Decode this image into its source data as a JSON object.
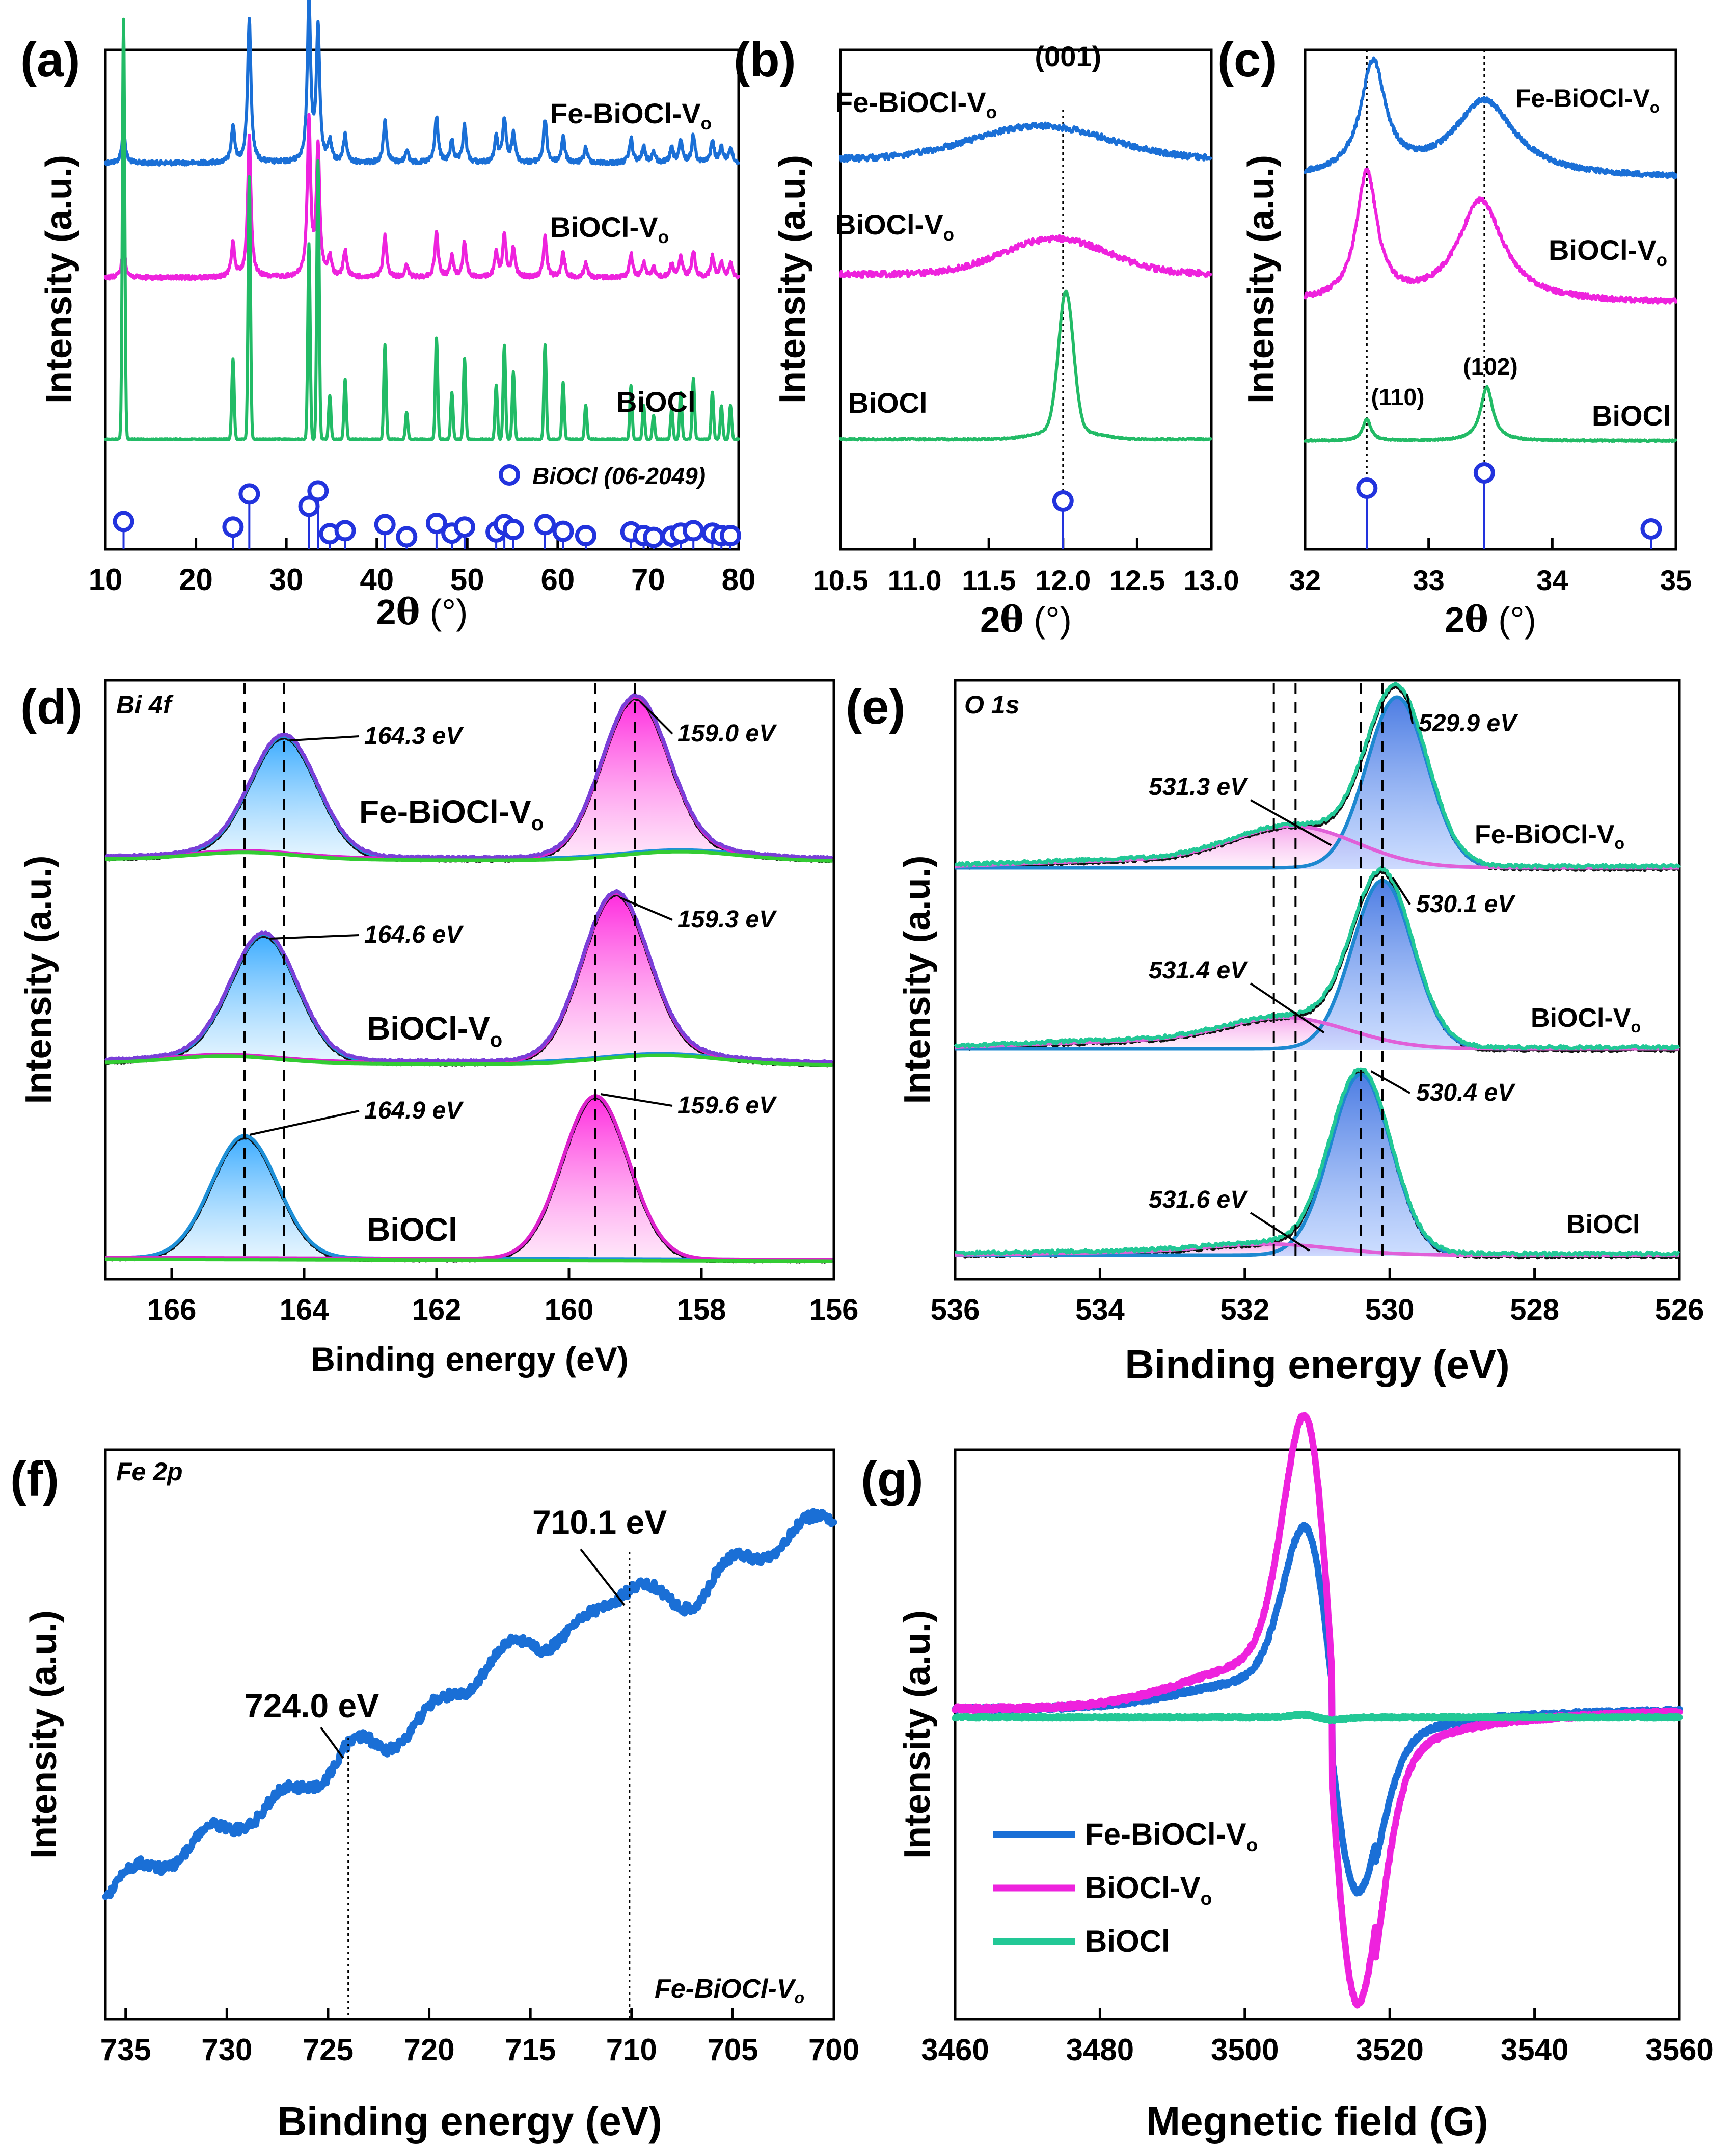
{
  "chart_data": [
    {
      "panel": "(a)",
      "type": "line",
      "xlabel": "2θ (°)",
      "ylabel": "Intensity (a.u.)",
      "xlim": [
        10,
        80
      ],
      "xticks": [
        10,
        20,
        30,
        40,
        50,
        60,
        70,
        80
      ],
      "series": [
        {
          "name": "Fe-BiOCl-Vo",
          "label": "Fe-BiOCl-V",
          "sub": "o",
          "color": "#1a6fd6"
        },
        {
          "name": "BiOCl-Vo",
          "label": "BiOCl-V",
          "sub": "o",
          "color": "#ee22dd"
        },
        {
          "name": "BiOCl",
          "label": "BiOCl",
          "sub": "",
          "color": "#22bb66"
        }
      ],
      "peaks": [
        {
          "x": 12.0,
          "h": 0.33
        },
        {
          "x": 24.1,
          "h": 0.24
        },
        {
          "x": 25.9,
          "h": 0.78
        },
        {
          "x": 32.5,
          "h": 0.58
        },
        {
          "x": 33.5,
          "h": 0.83
        },
        {
          "x": 34.8,
          "h": 0.13
        },
        {
          "x": 36.5,
          "h": 0.18
        },
        {
          "x": 40.9,
          "h": 0.28
        },
        {
          "x": 43.3,
          "h": 0.08
        },
        {
          "x": 46.6,
          "h": 0.3
        },
        {
          "x": 48.3,
          "h": 0.14
        },
        {
          "x": 49.7,
          "h": 0.24
        },
        {
          "x": 53.2,
          "h": 0.16
        },
        {
          "x": 54.1,
          "h": 0.28
        },
        {
          "x": 55.1,
          "h": 0.2
        },
        {
          "x": 58.6,
          "h": 0.28
        },
        {
          "x": 60.6,
          "h": 0.17
        },
        {
          "x": 63.1,
          "h": 0.1
        },
        {
          "x": 68.1,
          "h": 0.16
        },
        {
          "x": 69.5,
          "h": 0.1
        },
        {
          "x": 70.6,
          "h": 0.07
        },
        {
          "x": 72.6,
          "h": 0.09
        },
        {
          "x": 73.6,
          "h": 0.14
        },
        {
          "x": 75.0,
          "h": 0.18
        },
        {
          "x": 77.1,
          "h": 0.14
        },
        {
          "x": 78.1,
          "h": 0.1
        },
        {
          "x": 79.1,
          "h": 0.1
        }
      ],
      "reference_label": "BiOCl (06-2049)"
    },
    {
      "panel": "(b)",
      "type": "line",
      "xlabel": "2θ (°)",
      "ylabel": "Intensity (a.u.)",
      "xlim": [
        10.5,
        13.0
      ],
      "xticks": [
        "10.5",
        "11.0",
        "11.5",
        "12.0",
        "12.5",
        "13.0"
      ],
      "series": [
        {
          "name": "Fe-BiOCl-Vo",
          "label": "Fe-BiOCl-V",
          "sub": "o",
          "color": "#1a6fd6"
        },
        {
          "name": "BiOCl-Vo",
          "label": "BiOCl-V",
          "sub": "o",
          "color": "#ee22dd"
        },
        {
          "name": "BiOCl",
          "label": "BiOCl",
          "sub": "",
          "color": "#22bb66"
        }
      ],
      "annotation": "(001)",
      "reference_peak": 12.0
    },
    {
      "panel": "(c)",
      "type": "line",
      "xlabel": "2θ (°)",
      "ylabel": "Intensity (a.u.)",
      "xlim": [
        32,
        35
      ],
      "xticks": [
        32,
        33,
        34,
        35
      ],
      "series": [
        {
          "name": "Fe-BiOCl-Vo",
          "label": "Fe-BiOCl-V",
          "sub": "o",
          "color": "#1a6fd6"
        },
        {
          "name": "BiOCl-Vo",
          "label": "BiOCl-V",
          "sub": "o",
          "color": "#ee22dd"
        },
        {
          "name": "BiOCl",
          "label": "BiOCl",
          "sub": "",
          "color": "#22bb66"
        }
      ],
      "annotations": [
        "(110)",
        "(102)"
      ],
      "reference_peaks": [
        32.5,
        33.45,
        34.8
      ]
    },
    {
      "panel": "(d)",
      "type": "line",
      "title": "Bi 4f",
      "xlabel": "Binding energy (eV)",
      "ylabel": "Intensity (a.u.)",
      "xlim": [
        167,
        156
      ],
      "xticks": [
        166,
        164,
        162,
        160,
        158,
        156
      ],
      "series": [
        {
          "name": "Fe-BiOCl-Vo",
          "label": "Fe-BiOCl-V",
          "sub": "o",
          "peaks": [
            "164.3 eV",
            "159.0 eV"
          ],
          "values": [
            164.3,
            159.0
          ]
        },
        {
          "name": "BiOCl-Vo",
          "label": "BiOCl-V",
          "sub": "o",
          "peaks": [
            "164.6 eV",
            "159.3 eV"
          ],
          "values": [
            164.6,
            159.3
          ]
        },
        {
          "name": "BiOCl",
          "label": "BiOCl",
          "sub": "",
          "peaks": [
            "164.9 eV",
            "159.6 eV"
          ],
          "values": [
            164.9,
            159.6
          ]
        }
      ]
    },
    {
      "panel": "(e)",
      "type": "line",
      "title": "O 1s",
      "xlabel": "Binding energy (eV)",
      "ylabel": "Intensity (a.u.)",
      "xlim": [
        536,
        526
      ],
      "xticks": [
        536,
        534,
        532,
        530,
        528,
        526
      ],
      "series": [
        {
          "name": "Fe-BiOCl-Vo",
          "label": "Fe-BiOCl-V",
          "sub": "o",
          "peaks": [
            "529.9 eV",
            "531.3 eV"
          ],
          "values": [
            529.9,
            531.3
          ]
        },
        {
          "name": "BiOCl-Vo",
          "label": "BiOCl-V",
          "sub": "o",
          "peaks": [
            "530.1 eV",
            "531.4 eV"
          ],
          "values": [
            530.1,
            531.4
          ]
        },
        {
          "name": "BiOCl",
          "label": "BiOCl",
          "sub": "",
          "peaks": [
            "530.4 eV",
            "531.6 eV"
          ],
          "values": [
            530.4,
            531.6
          ]
        }
      ]
    },
    {
      "panel": "(f)",
      "type": "line",
      "title": "Fe 2p",
      "xlabel": "Binding energy (eV)",
      "ylabel": "Intensity (a.u.)",
      "xlim": [
        736,
        700
      ],
      "xticks": [
        735,
        730,
        725,
        720,
        715,
        710,
        705,
        700
      ],
      "sample": {
        "label": "Fe-BiOCl-V",
        "sub": "o"
      },
      "peaks": [
        {
          "x": 710.1,
          "label": "710.1 eV"
        },
        {
          "x": 724.0,
          "label": "724.0 eV"
        }
      ],
      "color": "#1a6fd6"
    },
    {
      "panel": "(g)",
      "type": "line",
      "xlabel": "Megnetic field (G)",
      "ylabel": "Intensity (a.u.)",
      "xlim": [
        3460,
        3560
      ],
      "xticks": [
        3460,
        3480,
        3500,
        3520,
        3540,
        3560
      ],
      "legend": "bottom-left",
      "series": [
        {
          "name": "Fe-BiOCl-Vo",
          "label": "Fe-BiOCl-V",
          "sub": "o",
          "color": "#1a6fd6",
          "amplitude": 0.62
        },
        {
          "name": "BiOCl-Vo",
          "label": "BiOCl-V",
          "sub": "o",
          "color": "#ee22dd",
          "amplitude": 1.0
        },
        {
          "name": "BiOCl",
          "label": "BiOCl",
          "sub": "",
          "color": "#22c896",
          "amplitude": 0.04
        }
      ]
    }
  ]
}
